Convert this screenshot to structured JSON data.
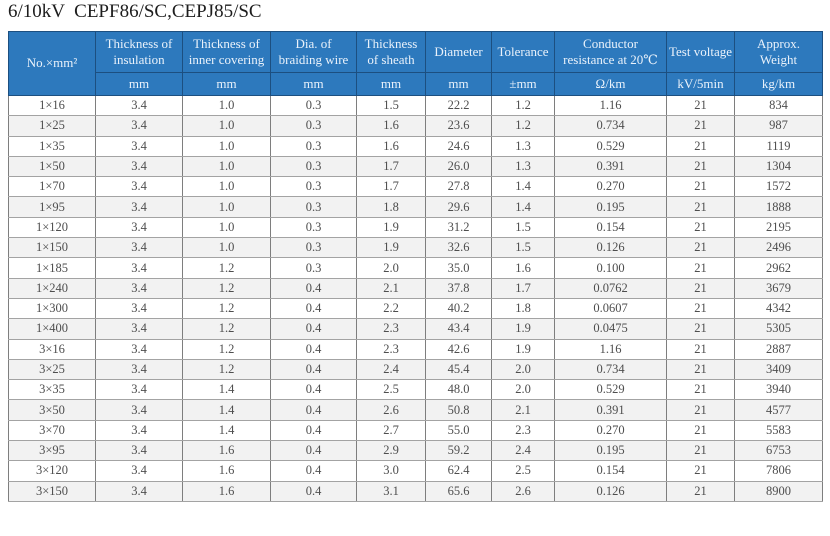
{
  "page": {
    "title": "6/10kV  CEPF86/SC,CEPJ85/SC"
  },
  "colors": {
    "header_bg": "#2d79bd",
    "header_border": "#1c4f80",
    "header_text": "#eaf2fb",
    "row_alt_bg": "#f2f2f2",
    "body_text": "#4e4e4e"
  },
  "table": {
    "columns": [
      {
        "label": "No.×mm²",
        "unit": ""
      },
      {
        "label": "Thickness of insulation",
        "unit": "mm"
      },
      {
        "label": "Thickness of inner covering",
        "unit": "mm"
      },
      {
        "label": "Dia. of braiding wire",
        "unit": "mm"
      },
      {
        "label": "Thickness of sheath",
        "unit": "mm"
      },
      {
        "label": "Diameter",
        "unit": "mm"
      },
      {
        "label": "Tolerance",
        "unit": "±mm"
      },
      {
        "label": "Conductor resistance at 20℃",
        "unit": "Ω/km"
      },
      {
        "label": "Test voltage",
        "unit": "kV/5min"
      },
      {
        "label": "Approx. Weight",
        "unit": "kg/km"
      }
    ],
    "rows": [
      [
        "1×16",
        "3.4",
        "1.0",
        "0.3",
        "1.5",
        "22.2",
        "1.2",
        "1.16",
        "21",
        "834"
      ],
      [
        "1×25",
        "3.4",
        "1.0",
        "0.3",
        "1.6",
        "23.6",
        "1.2",
        "0.734",
        "21",
        "987"
      ],
      [
        "1×35",
        "3.4",
        "1.0",
        "0.3",
        "1.6",
        "24.6",
        "1.3",
        "0.529",
        "21",
        "1119"
      ],
      [
        "1×50",
        "3.4",
        "1.0",
        "0.3",
        "1.7",
        "26.0",
        "1.3",
        "0.391",
        "21",
        "1304"
      ],
      [
        "1×70",
        "3.4",
        "1.0",
        "0.3",
        "1.7",
        "27.8",
        "1.4",
        "0.270",
        "21",
        "1572"
      ],
      [
        "1×95",
        "3.4",
        "1.0",
        "0.3",
        "1.8",
        "29.6",
        "1.4",
        "0.195",
        "21",
        "1888"
      ],
      [
        "1×120",
        "3.4",
        "1.0",
        "0.3",
        "1.9",
        "31.2",
        "1.5",
        "0.154",
        "21",
        "2195"
      ],
      [
        "1×150",
        "3.4",
        "1.0",
        "0.3",
        "1.9",
        "32.6",
        "1.5",
        "0.126",
        "21",
        "2496"
      ],
      [
        "1×185",
        "3.4",
        "1.2",
        "0.3",
        "2.0",
        "35.0",
        "1.6",
        "0.100",
        "21",
        "2962"
      ],
      [
        "1×240",
        "3.4",
        "1.2",
        "0.4",
        "2.1",
        "37.8",
        "1.7",
        "0.0762",
        "21",
        "3679"
      ],
      [
        "1×300",
        "3.4",
        "1.2",
        "0.4",
        "2.2",
        "40.2",
        "1.8",
        "0.0607",
        "21",
        "4342"
      ],
      [
        "1×400",
        "3.4",
        "1.2",
        "0.4",
        "2.3",
        "43.4",
        "1.9",
        "0.0475",
        "21",
        "5305"
      ],
      [
        "3×16",
        "3.4",
        "1.2",
        "0.4",
        "2.3",
        "42.6",
        "1.9",
        "1.16",
        "21",
        "2887"
      ],
      [
        "3×25",
        "3.4",
        "1.2",
        "0.4",
        "2.4",
        "45.4",
        "2.0",
        "0.734",
        "21",
        "3409"
      ],
      [
        "3×35",
        "3.4",
        "1.4",
        "0.4",
        "2.5",
        "48.0",
        "2.0",
        "0.529",
        "21",
        "3940"
      ],
      [
        "3×50",
        "3.4",
        "1.4",
        "0.4",
        "2.6",
        "50.8",
        "2.1",
        "0.391",
        "21",
        "4577"
      ],
      [
        "3×70",
        "3.4",
        "1.4",
        "0.4",
        "2.7",
        "55.0",
        "2.3",
        "0.270",
        "21",
        "5583"
      ],
      [
        "3×95",
        "3.4",
        "1.6",
        "0.4",
        "2.9",
        "59.2",
        "2.4",
        "0.195",
        "21",
        "6753"
      ],
      [
        "3×120",
        "3.4",
        "1.6",
        "0.4",
        "3.0",
        "62.4",
        "2.5",
        "0.154",
        "21",
        "7806"
      ],
      [
        "3×150",
        "3.4",
        "1.6",
        "0.4",
        "3.1",
        "65.6",
        "2.6",
        "0.126",
        "21",
        "8900"
      ]
    ]
  }
}
